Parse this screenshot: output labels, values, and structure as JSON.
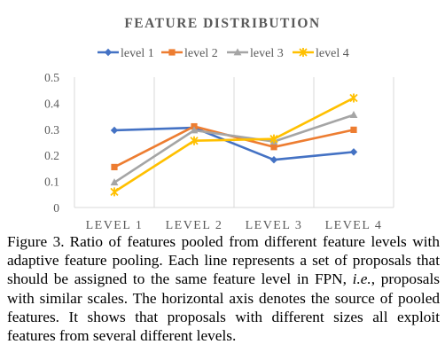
{
  "chart_data": {
    "type": "line",
    "title": "FEATURE DISTRIBUTION",
    "categories": [
      "LEVEL 1",
      "LEVEL 2",
      "LEVEL 3",
      "LEVEL 4"
    ],
    "yticks": [
      "0",
      "0.1",
      "0.2",
      "0.3",
      "0.4",
      "0.5"
    ],
    "ylim": [
      0,
      0.5
    ],
    "grid": "vertical",
    "legend_position": "top",
    "series": [
      {
        "name": "level 1",
        "values": [
          0.296,
          0.306,
          0.183,
          0.213
        ],
        "color": "#4472C4",
        "marker": "diamond"
      },
      {
        "name": "level 2",
        "values": [
          0.155,
          0.311,
          0.232,
          0.298
        ],
        "color": "#ED7D31",
        "marker": "square"
      },
      {
        "name": "level 3",
        "values": [
          0.096,
          0.296,
          0.253,
          0.355
        ],
        "color": "#A5A5A5",
        "marker": "triangle"
      },
      {
        "name": "level 4",
        "values": [
          0.06,
          0.256,
          0.263,
          0.42
        ],
        "color": "#FFC000",
        "marker": "star"
      }
    ]
  },
  "caption": {
    "label": "Figure 3.",
    "text_part1": "Ratio of features pooled from different feature levels with adaptive feature pooling. Each line represents a set of proposals that should be assigned to the same feature level in FPN, ",
    "text_italic": "i.e.",
    "text_part2": ", proposals with similar scales. The horizontal axis denotes the source of pooled features. It shows that proposals with different sizes all exploit features from several different levels."
  }
}
